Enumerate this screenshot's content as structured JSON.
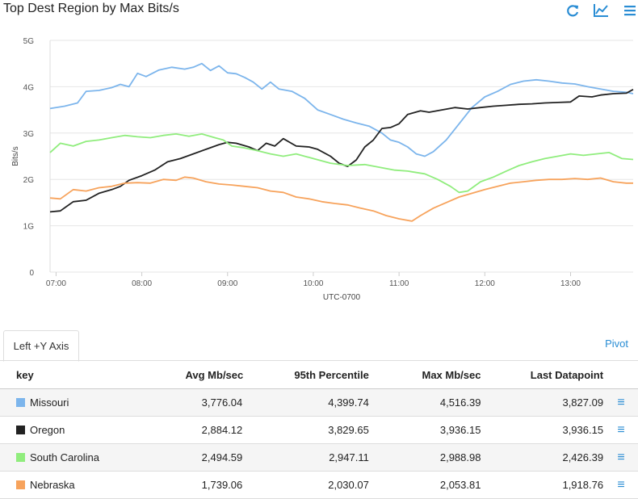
{
  "header": {
    "title": "Top Dest Region by Max Bits/s"
  },
  "icons": {
    "refresh": "refresh-icon",
    "chart_type": "line-chart-icon",
    "menu": "menu-icon",
    "accent": "#2a8dd4"
  },
  "tabs": {
    "active_label": "Left +Y Axis",
    "pivot_label": "Pivot"
  },
  "chart_data": {
    "type": "line",
    "title": "Top Dest Region by Max Bits/s",
    "xlabel": "UTC-0700",
    "ylabel": "Bits/s",
    "ylim": [
      0,
      5
    ],
    "y_ticks": [
      "0",
      "1G",
      "2G",
      "3G",
      "4G",
      "5G"
    ],
    "x_ticks": [
      "07:00",
      "08:00",
      "09:00",
      "10:00",
      "11:00",
      "12:00",
      "13:00"
    ],
    "x_tick_values": [
      7.0,
      8.0,
      9.0,
      10.0,
      11.0,
      12.0,
      13.0
    ],
    "xlim": [
      6.93,
      13.73
    ],
    "grid": true,
    "series": [
      {
        "name": "Missouri",
        "color": "#7cb5ec",
        "points": [
          [
            6.93,
            3.53
          ],
          [
            7.1,
            3.58
          ],
          [
            7.25,
            3.65
          ],
          [
            7.35,
            3.9
          ],
          [
            7.5,
            3.92
          ],
          [
            7.65,
            3.98
          ],
          [
            7.75,
            4.05
          ],
          [
            7.85,
            4.0
          ],
          [
            7.95,
            4.29
          ],
          [
            8.05,
            4.22
          ],
          [
            8.2,
            4.36
          ],
          [
            8.35,
            4.42
          ],
          [
            8.5,
            4.38
          ],
          [
            8.6,
            4.42
          ],
          [
            8.7,
            4.5
          ],
          [
            8.8,
            4.35
          ],
          [
            8.9,
            4.45
          ],
          [
            9.0,
            4.3
          ],
          [
            9.1,
            4.28
          ],
          [
            9.2,
            4.2
          ],
          [
            9.3,
            4.1
          ],
          [
            9.4,
            3.95
          ],
          [
            9.5,
            4.1
          ],
          [
            9.6,
            3.95
          ],
          [
            9.75,
            3.9
          ],
          [
            9.9,
            3.75
          ],
          [
            10.05,
            3.5
          ],
          [
            10.2,
            3.4
          ],
          [
            10.35,
            3.3
          ],
          [
            10.5,
            3.22
          ],
          [
            10.65,
            3.15
          ],
          [
            10.8,
            3.0
          ],
          [
            10.9,
            2.85
          ],
          [
            11.0,
            2.8
          ],
          [
            11.1,
            2.7
          ],
          [
            11.2,
            2.55
          ],
          [
            11.3,
            2.5
          ],
          [
            11.4,
            2.6
          ],
          [
            11.55,
            2.85
          ],
          [
            11.7,
            3.2
          ],
          [
            11.85,
            3.55
          ],
          [
            12.0,
            3.78
          ],
          [
            12.15,
            3.9
          ],
          [
            12.3,
            4.05
          ],
          [
            12.45,
            4.12
          ],
          [
            12.6,
            4.15
          ],
          [
            12.75,
            4.12
          ],
          [
            12.9,
            4.08
          ],
          [
            13.05,
            4.06
          ],
          [
            13.2,
            4.0
          ],
          [
            13.35,
            3.95
          ],
          [
            13.5,
            3.9
          ],
          [
            13.65,
            3.88
          ],
          [
            13.73,
            3.85
          ]
        ]
      },
      {
        "name": "Oregon",
        "color": "#222222",
        "points": [
          [
            6.93,
            1.3
          ],
          [
            7.05,
            1.32
          ],
          [
            7.2,
            1.52
          ],
          [
            7.35,
            1.55
          ],
          [
            7.5,
            1.7
          ],
          [
            7.65,
            1.78
          ],
          [
            7.75,
            1.85
          ],
          [
            7.85,
            1.98
          ],
          [
            8.0,
            2.08
          ],
          [
            8.15,
            2.2
          ],
          [
            8.3,
            2.38
          ],
          [
            8.45,
            2.45
          ],
          [
            8.6,
            2.55
          ],
          [
            8.75,
            2.65
          ],
          [
            8.9,
            2.75
          ],
          [
            9.0,
            2.8
          ],
          [
            9.1,
            2.78
          ],
          [
            9.25,
            2.7
          ],
          [
            9.35,
            2.62
          ],
          [
            9.45,
            2.78
          ],
          [
            9.55,
            2.72
          ],
          [
            9.65,
            2.88
          ],
          [
            9.8,
            2.72
          ],
          [
            9.95,
            2.7
          ],
          [
            10.05,
            2.65
          ],
          [
            10.2,
            2.5
          ],
          [
            10.3,
            2.35
          ],
          [
            10.4,
            2.28
          ],
          [
            10.5,
            2.42
          ],
          [
            10.6,
            2.7
          ],
          [
            10.7,
            2.85
          ],
          [
            10.8,
            3.1
          ],
          [
            10.9,
            3.12
          ],
          [
            11.0,
            3.2
          ],
          [
            11.1,
            3.4
          ],
          [
            11.25,
            3.48
          ],
          [
            11.35,
            3.45
          ],
          [
            11.5,
            3.5
          ],
          [
            11.65,
            3.55
          ],
          [
            11.8,
            3.52
          ],
          [
            11.95,
            3.55
          ],
          [
            12.1,
            3.58
          ],
          [
            12.25,
            3.6
          ],
          [
            12.4,
            3.62
          ],
          [
            12.55,
            3.63
          ],
          [
            12.7,
            3.65
          ],
          [
            12.85,
            3.66
          ],
          [
            13.0,
            3.67
          ],
          [
            13.1,
            3.8
          ],
          [
            13.25,
            3.78
          ],
          [
            13.35,
            3.82
          ],
          [
            13.5,
            3.85
          ],
          [
            13.65,
            3.86
          ],
          [
            13.73,
            3.94
          ]
        ]
      },
      {
        "name": "South Carolina",
        "color": "#90ed7d",
        "points": [
          [
            6.93,
            2.58
          ],
          [
            7.05,
            2.78
          ],
          [
            7.2,
            2.72
          ],
          [
            7.35,
            2.82
          ],
          [
            7.5,
            2.85
          ],
          [
            7.65,
            2.9
          ],
          [
            7.8,
            2.95
          ],
          [
            7.95,
            2.92
          ],
          [
            8.1,
            2.9
          ],
          [
            8.25,
            2.95
          ],
          [
            8.4,
            2.98
          ],
          [
            8.55,
            2.93
          ],
          [
            8.7,
            2.98
          ],
          [
            8.85,
            2.9
          ],
          [
            8.95,
            2.85
          ],
          [
            9.05,
            2.72
          ],
          [
            9.2,
            2.68
          ],
          [
            9.35,
            2.62
          ],
          [
            9.5,
            2.55
          ],
          [
            9.65,
            2.5
          ],
          [
            9.8,
            2.55
          ],
          [
            10.0,
            2.45
          ],
          [
            10.2,
            2.35
          ],
          [
            10.4,
            2.3
          ],
          [
            10.6,
            2.32
          ],
          [
            10.8,
            2.25
          ],
          [
            10.95,
            2.2
          ],
          [
            11.1,
            2.18
          ],
          [
            11.3,
            2.12
          ],
          [
            11.45,
            2.0
          ],
          [
            11.6,
            1.85
          ],
          [
            11.7,
            1.72
          ],
          [
            11.8,
            1.75
          ],
          [
            11.95,
            1.95
          ],
          [
            12.1,
            2.05
          ],
          [
            12.25,
            2.18
          ],
          [
            12.4,
            2.3
          ],
          [
            12.55,
            2.38
          ],
          [
            12.7,
            2.45
          ],
          [
            12.85,
            2.5
          ],
          [
            13.0,
            2.55
          ],
          [
            13.15,
            2.52
          ],
          [
            13.3,
            2.55
          ],
          [
            13.45,
            2.58
          ],
          [
            13.6,
            2.45
          ],
          [
            13.73,
            2.43
          ]
        ]
      },
      {
        "name": "Nebraska",
        "color": "#f7a35c",
        "points": [
          [
            6.93,
            1.6
          ],
          [
            7.05,
            1.58
          ],
          [
            7.2,
            1.78
          ],
          [
            7.35,
            1.75
          ],
          [
            7.5,
            1.82
          ],
          [
            7.65,
            1.85
          ],
          [
            7.8,
            1.92
          ],
          [
            7.95,
            1.93
          ],
          [
            8.1,
            1.92
          ],
          [
            8.25,
            2.0
          ],
          [
            8.4,
            1.98
          ],
          [
            8.5,
            2.05
          ],
          [
            8.6,
            2.03
          ],
          [
            8.75,
            1.95
          ],
          [
            8.9,
            1.9
          ],
          [
            9.05,
            1.88
          ],
          [
            9.2,
            1.85
          ],
          [
            9.35,
            1.82
          ],
          [
            9.5,
            1.75
          ],
          [
            9.65,
            1.72
          ],
          [
            9.8,
            1.62
          ],
          [
            9.95,
            1.58
          ],
          [
            10.1,
            1.52
          ],
          [
            10.25,
            1.48
          ],
          [
            10.4,
            1.45
          ],
          [
            10.55,
            1.38
          ],
          [
            10.7,
            1.32
          ],
          [
            10.85,
            1.22
          ],
          [
            11.0,
            1.15
          ],
          [
            11.15,
            1.1
          ],
          [
            11.25,
            1.22
          ],
          [
            11.4,
            1.38
          ],
          [
            11.55,
            1.5
          ],
          [
            11.7,
            1.62
          ],
          [
            11.85,
            1.7
          ],
          [
            12.0,
            1.78
          ],
          [
            12.15,
            1.85
          ],
          [
            12.3,
            1.92
          ],
          [
            12.45,
            1.95
          ],
          [
            12.6,
            1.98
          ],
          [
            12.75,
            2.0
          ],
          [
            12.9,
            2.0
          ],
          [
            13.05,
            2.02
          ],
          [
            13.2,
            2.0
          ],
          [
            13.35,
            2.03
          ],
          [
            13.5,
            1.95
          ],
          [
            13.65,
            1.92
          ],
          [
            13.73,
            1.92
          ]
        ]
      }
    ]
  },
  "table": {
    "headers": {
      "key": "key",
      "avg": "Avg Mb/sec",
      "p95": "95th Percentile",
      "max": "Max Mb/sec",
      "last": "Last Datapoint"
    },
    "rows": [
      {
        "key": "Missouri",
        "color": "#7cb5ec",
        "avg": "3,776.04",
        "p95": "4,399.74",
        "max": "4,516.39",
        "last": "3,827.09"
      },
      {
        "key": "Oregon",
        "color": "#222222",
        "avg": "2,884.12",
        "p95": "3,829.65",
        "max": "3,936.15",
        "last": "3,936.15"
      },
      {
        "key": "South Carolina",
        "color": "#90ed7d",
        "avg": "2,494.59",
        "p95": "2,947.11",
        "max": "2,988.98",
        "last": "2,426.39"
      },
      {
        "key": "Nebraska",
        "color": "#f7a35c",
        "avg": "1,739.06",
        "p95": "2,030.07",
        "max": "2,053.81",
        "last": "1,918.76"
      }
    ]
  }
}
